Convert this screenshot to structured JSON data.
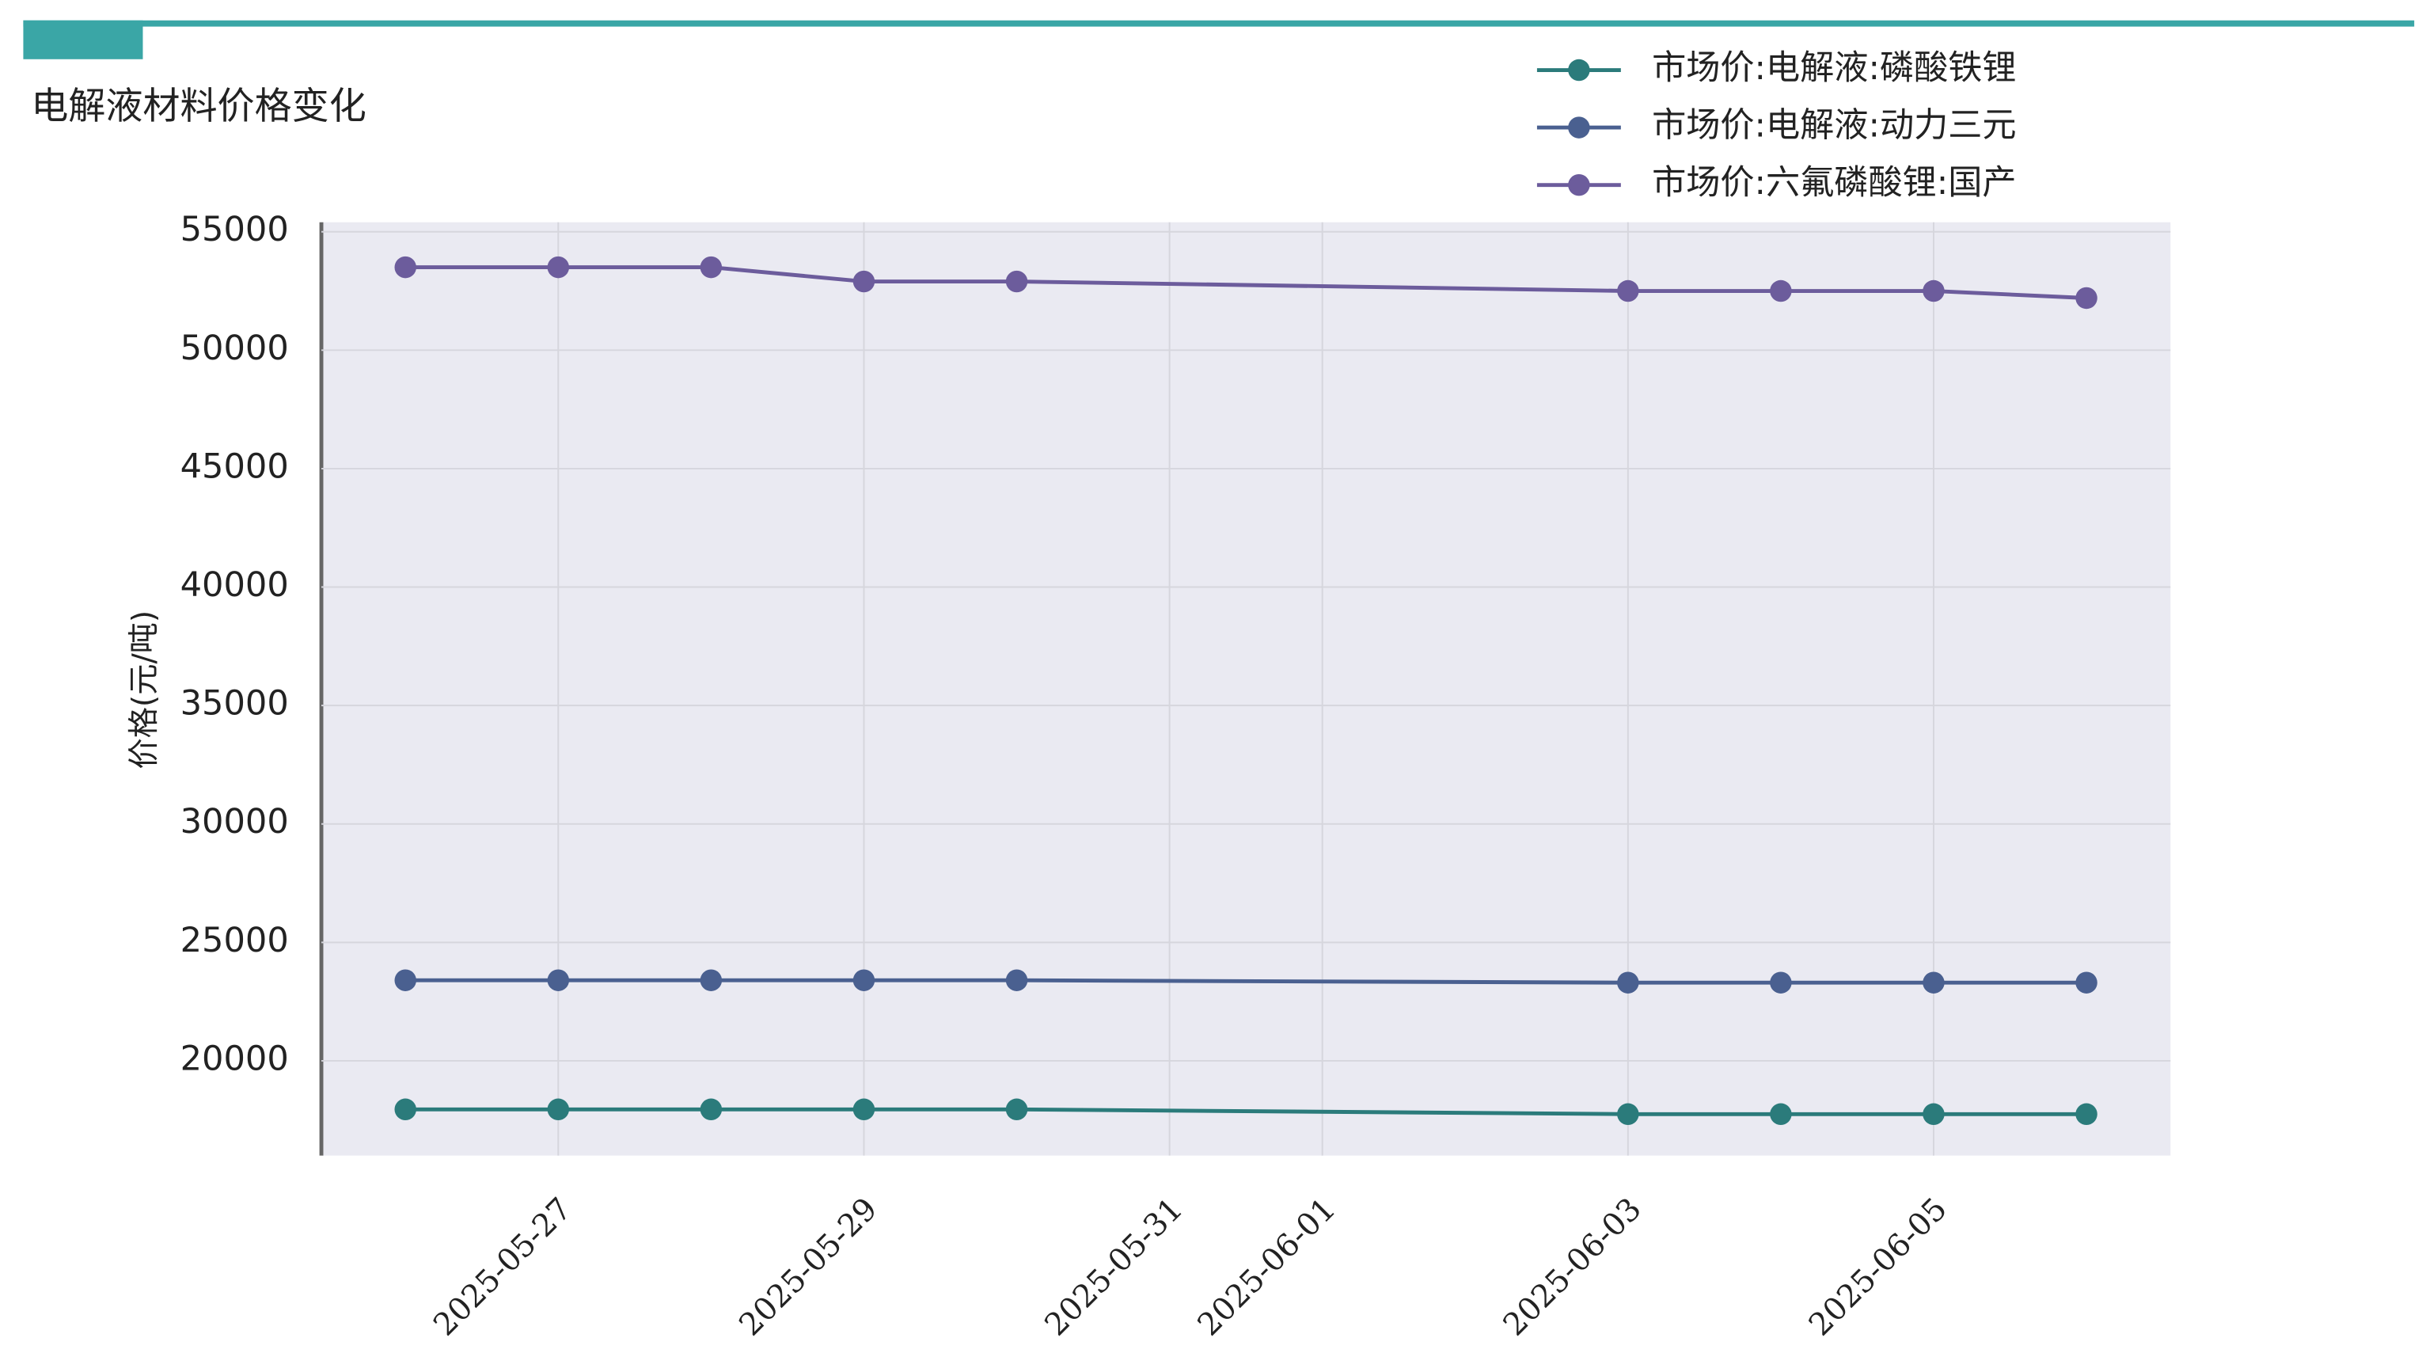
{
  "chart_data": {
    "type": "line",
    "title": "电解液材料价格变化",
    "y_label": "价格(元/吨)",
    "x": [
      "2025-05-26",
      "2025-05-27",
      "2025-05-28",
      "2025-05-29",
      "2025-05-30",
      "2025-06-03",
      "2025-06-04",
      "2025-06-05",
      "2025-06-06"
    ],
    "xticks": [
      "2025-05-27",
      "2025-05-29",
      "2025-05-31",
      "2025-06-01",
      "2025-06-03",
      "2025-06-05"
    ],
    "ylim": [
      16000,
      55400
    ],
    "yticks": [
      20000,
      25000,
      30000,
      35000,
      40000,
      45000,
      50000,
      55000
    ],
    "grid": true,
    "legend": "top-right",
    "series": [
      {
        "name": "市场价:电解液:磷酸铁锂",
        "color": "#2b7b7b",
        "values": [
          17950,
          17950,
          17950,
          17950,
          17950,
          17750,
          17750,
          17750,
          17750
        ]
      },
      {
        "name": "市场价:电解液:动力三元",
        "color": "#4a6090",
        "values": [
          23400,
          23400,
          23400,
          23400,
          23400,
          23300,
          23300,
          23300,
          23300
        ]
      },
      {
        "name": "市场价:六氟磷酸锂:国产",
        "color": "#6c5c9c",
        "values": [
          53500,
          53500,
          53500,
          52900,
          52900,
          52500,
          52500,
          52500,
          52200
        ]
      }
    ]
  }
}
